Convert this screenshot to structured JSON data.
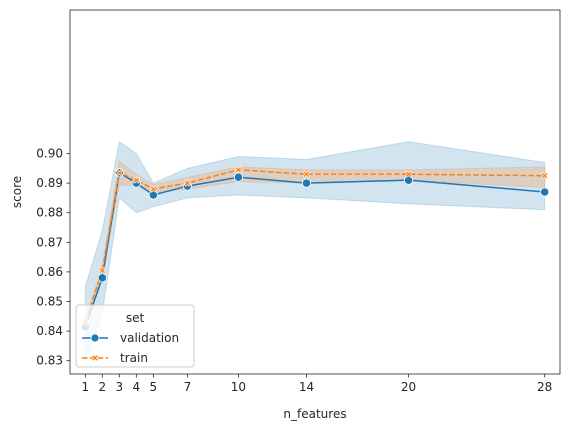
{
  "chart_data": {
    "type": "line",
    "title": "",
    "xlabel": "n_features",
    "ylabel": "score",
    "x": [
      1,
      2,
      3,
      4,
      5,
      7,
      10,
      14,
      20,
      28
    ],
    "x_tick_labels": [
      "1",
      "2",
      "3",
      "4",
      "5",
      "7",
      "10",
      "14",
      "20",
      "28"
    ],
    "y_ticks": [
      0.83,
      0.84,
      0.85,
      0.86,
      0.87,
      0.88,
      0.89,
      0.9
    ],
    "y_tick_labels": [
      "0.83",
      "0.84",
      "0.85",
      "0.86",
      "0.87",
      "0.88",
      "0.89",
      "0.90"
    ],
    "xlim": [
      0.1,
      28.9
    ],
    "ylim": [
      0.8255,
      0.9485
    ],
    "grid": false,
    "legend": {
      "title": "set",
      "position": "lower-left"
    },
    "series": [
      {
        "name": "validation",
        "color": "#1f77b4",
        "marker": "circle",
        "linestyle": "solid",
        "values": [
          0.8415,
          0.858,
          0.8935,
          0.89,
          0.886,
          0.889,
          0.892,
          0.89,
          0.891,
          0.887
        ],
        "ci_lower": [
          0.829,
          0.846,
          0.885,
          0.88,
          0.882,
          0.885,
          0.886,
          0.885,
          0.883,
          0.881
        ],
        "ci_upper": [
          0.855,
          0.874,
          0.904,
          0.9,
          0.89,
          0.895,
          0.899,
          0.898,
          0.904,
          0.897
        ]
      },
      {
        "name": "train",
        "color": "#ff7f0e",
        "marker": "x",
        "linestyle": "dashed",
        "values": [
          0.843,
          0.8605,
          0.8935,
          0.891,
          0.888,
          0.89,
          0.8945,
          0.893,
          0.893,
          0.8925
        ],
        "ci_lower": [
          0.842,
          0.859,
          0.8895,
          0.889,
          0.8865,
          0.888,
          0.8905,
          0.89,
          0.891,
          0.8885
        ],
        "ci_upper": [
          0.844,
          0.862,
          0.8975,
          0.893,
          0.8895,
          0.892,
          0.8955,
          0.8945,
          0.8945,
          0.8955
        ]
      }
    ]
  }
}
